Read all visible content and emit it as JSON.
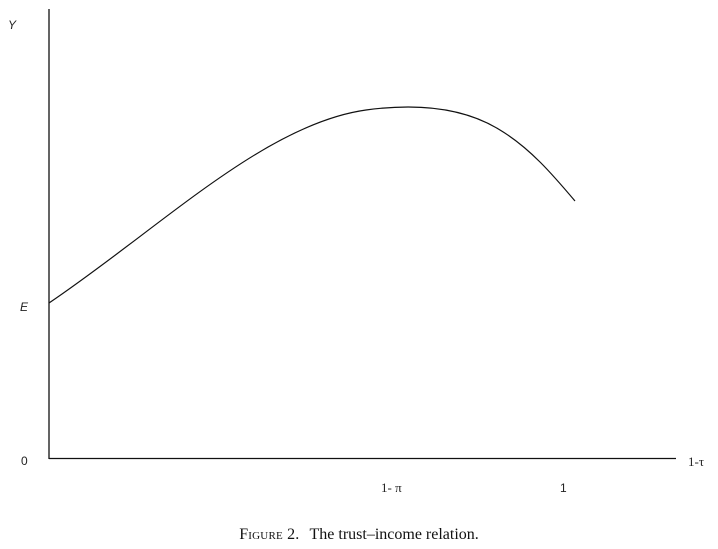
{
  "caption": {
    "figure_label": "Figure 2.",
    "text": "The trust–income relation."
  },
  "axes": {
    "y_axis_label": "Y",
    "x_axis_label": "1-τ",
    "origin_label": "0",
    "y_tick_label": "E",
    "x_tick_peak_label": "1- π",
    "x_tick_end_label": "1"
  },
  "chart_data": {
    "type": "line",
    "title": "",
    "xlabel": "1-τ",
    "ylabel": "Y",
    "x_ticks": [
      "1- π",
      "1"
    ],
    "y_ticks": [
      "0",
      "E"
    ],
    "curve_shape": "rises from E at x=0 to a maximum at x=1-π, then declines toward x=1",
    "grid": false
  }
}
